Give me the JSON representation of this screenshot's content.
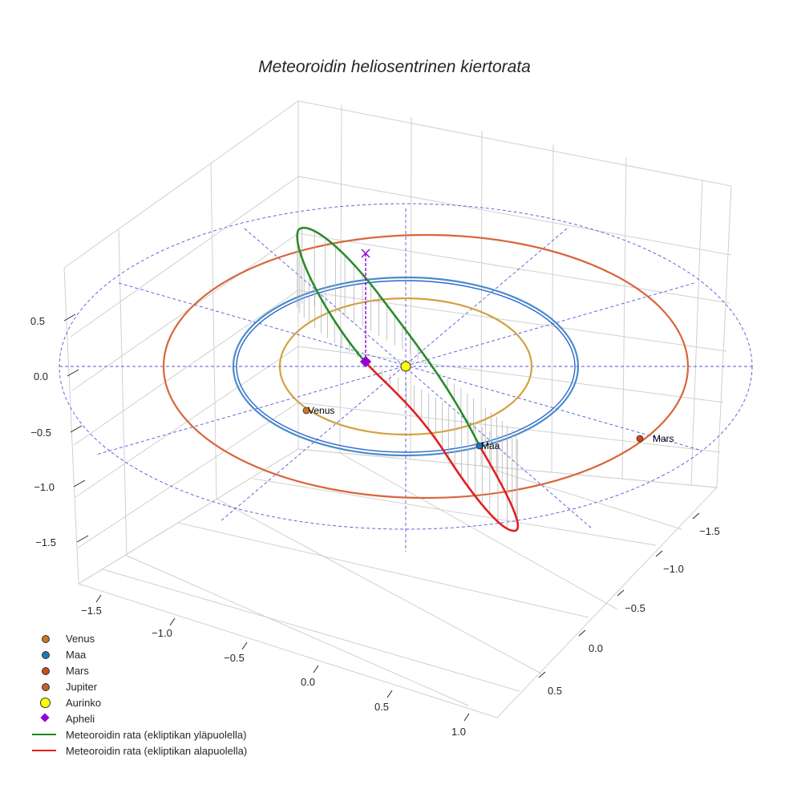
{
  "chart_data": {
    "type": "3d-orbit",
    "title": "Meteoroidin heliosentrinen kiertorata",
    "z_axis": {
      "ticks": [
        "0.5",
        "0.0",
        "−0.5",
        "−1.0",
        "−1.5"
      ]
    },
    "x_axis": {
      "ticks": [
        "−1.5",
        "−1.0",
        "−0.5",
        "0.0",
        "0.5",
        "1.0"
      ]
    },
    "y_axis": {
      "ticks": [
        "−1.5",
        "−1.0",
        "−0.5",
        "0.0",
        "0.5"
      ]
    },
    "planets": [
      {
        "name": "Venus",
        "orbit_radius_au": 0.72,
        "color": "#d4a040",
        "marker_color": "#c87820",
        "label": "Venus"
      },
      {
        "name": "Maa",
        "orbit_radius_au": 1.0,
        "color": "#4a8cc8",
        "marker_color": "#1f77b4",
        "label": "Maa"
      },
      {
        "name": "Mars",
        "orbit_radius_au": 1.52,
        "color": "#d9653b",
        "marker_color": "#cc4a1a",
        "label": "Mars"
      }
    ],
    "sun": {
      "name": "Aurinko",
      "color": "#ffff00"
    },
    "aphelion_color": "#9400d3",
    "orbit_colors": {
      "above": "#2a8c2a",
      "below": "#e02020"
    },
    "legend": [
      {
        "label": "Venus",
        "kind": "dot",
        "color": "#c87820"
      },
      {
        "label": "Maa",
        "kind": "dot",
        "color": "#1f77b4"
      },
      {
        "label": "Mars",
        "kind": "dot",
        "color": "#cc4a1a"
      },
      {
        "label": "Jupiter",
        "kind": "dot",
        "color": "#c0622a"
      },
      {
        "label": "Aurinko",
        "kind": "sun",
        "color": "#ffff00"
      },
      {
        "label": "Apheli",
        "kind": "diamond",
        "color": "#9400d3"
      },
      {
        "label": "Meteoroidin rata (ekliptikan yläpuolella)",
        "kind": "line",
        "color": "#1a8c1a"
      },
      {
        "label": "Meteoroidin rata (ekliptikan alapuolella)",
        "kind": "line",
        "color": "#e02020"
      }
    ]
  }
}
